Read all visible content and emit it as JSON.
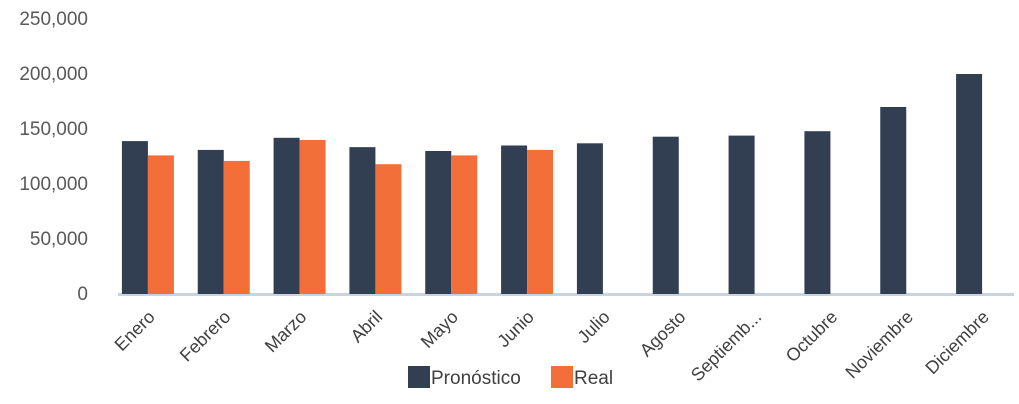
{
  "chart_data": {
    "type": "bar",
    "categories": [
      "Enero",
      "Febrero",
      "Marzo",
      "Abril",
      "Mayo",
      "Junio",
      "Julio",
      "Agosto",
      "Septiemb...",
      "Octubre",
      "Noviembre",
      "Diciembre"
    ],
    "series": [
      {
        "name": "Pronóstico",
        "color": "#323e52",
        "values": [
          139000,
          131000,
          142000,
          133500,
          130000,
          135000,
          137000,
          143000,
          144000,
          148000,
          170000,
          200000
        ]
      },
      {
        "name": "Real",
        "color": "#f26f3a",
        "values": [
          126000,
          121000,
          140000,
          118000,
          126000,
          131000,
          null,
          null,
          null,
          null,
          null,
          null
        ]
      }
    ],
    "y_ticks": [
      "250,000",
      "200,000",
      "150,000",
      "100,000",
      "50,000",
      "0"
    ],
    "y_tick_values": [
      250000,
      200000,
      150000,
      100000,
      50000,
      0
    ],
    "ylim": [
      0,
      250000
    ],
    "grid": false,
    "legend": "bottom-center"
  }
}
